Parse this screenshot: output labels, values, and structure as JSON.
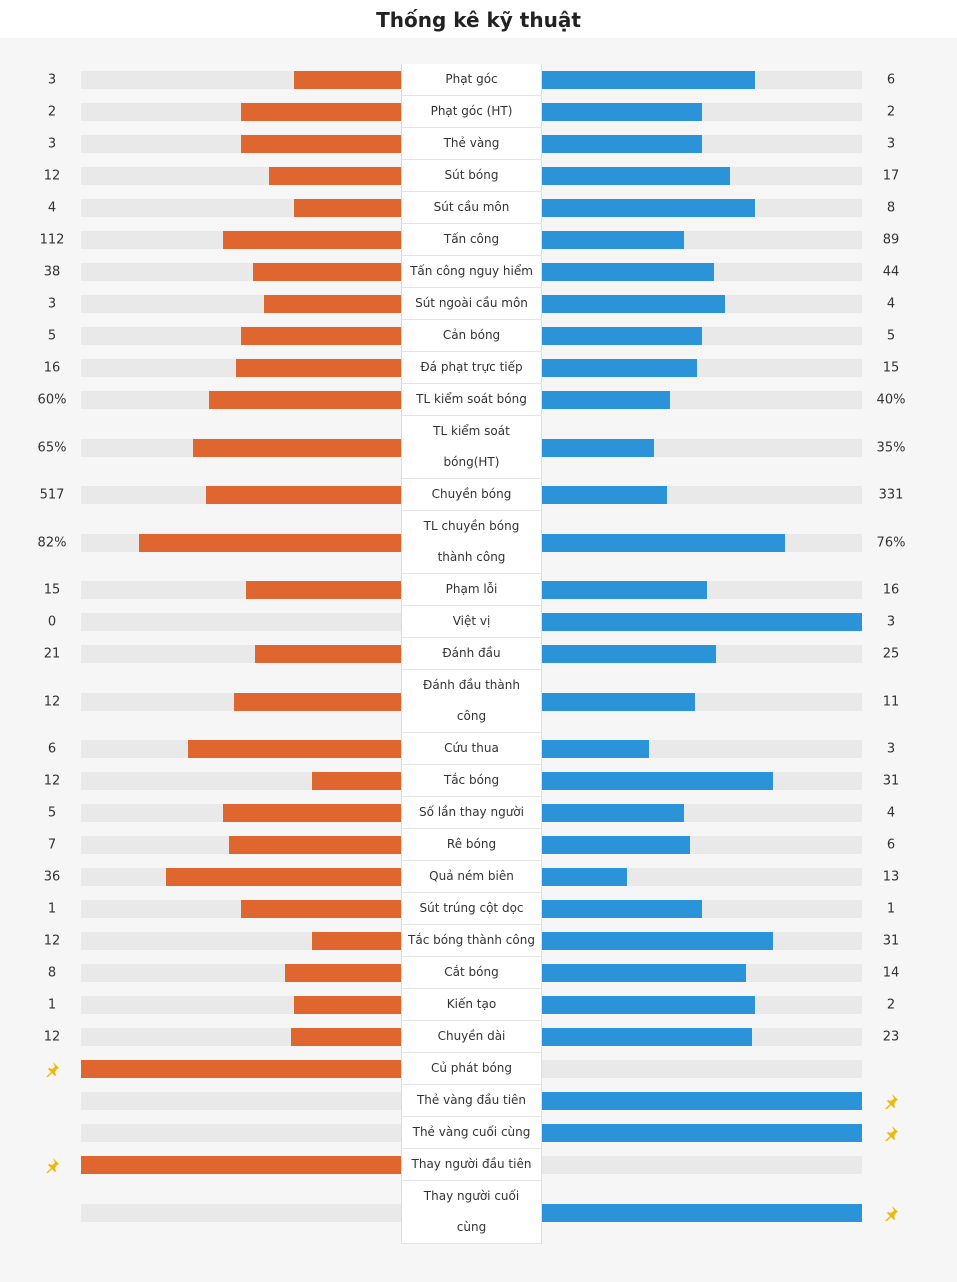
{
  "title": "Thống kê kỹ thuật",
  "home_color": "#e0662f",
  "away_color": "#2b93d8",
  "rows": [
    {
      "label": "Phạt góc",
      "home": 3,
      "away": 6
    },
    {
      "label": "Phạt góc (HT)",
      "home": 2,
      "away": 2
    },
    {
      "label": "Thẻ vàng",
      "home": 3,
      "away": 3
    },
    {
      "label": "Sút bóng",
      "home": 12,
      "away": 17
    },
    {
      "label": "Sút cầu môn",
      "home": 4,
      "away": 8
    },
    {
      "label": "Tấn công",
      "home": 112,
      "away": 89
    },
    {
      "label": "Tấn công nguy hiểm",
      "home": 38,
      "away": 44
    },
    {
      "label": "Sút ngoài cầu môn",
      "home": 3,
      "away": 4
    },
    {
      "label": "Cản bóng",
      "home": 5,
      "away": 5
    },
    {
      "label": "Đá phạt trực tiếp",
      "home": 16,
      "away": 15
    },
    {
      "label": "TL kiểm soát bóng",
      "home": 60,
      "home_label": "60%",
      "away": 40,
      "away_label": "40%"
    },
    {
      "label": "TL kiểm soát bóng(HT)",
      "home": 65,
      "home_label": "65%",
      "away": 35,
      "away_label": "35%"
    },
    {
      "label": "Chuyền bóng",
      "home": 517,
      "away": 331
    },
    {
      "label": "TL chuyền bóng thành công",
      "home": 82,
      "home_label": "82%",
      "away": 76,
      "away_label": "76%"
    },
    {
      "label": "Phạm lỗi",
      "home": 15,
      "away": 16
    },
    {
      "label": "Việt vị",
      "home": 0,
      "away": 3
    },
    {
      "label": "Đánh đầu",
      "home": 21,
      "away": 25
    },
    {
      "label": "Đánh đầu thành công",
      "home": 12,
      "away": 11
    },
    {
      "label": "Cứu thua",
      "home": 6,
      "away": 3
    },
    {
      "label": "Tắc bóng",
      "home": 12,
      "away": 31
    },
    {
      "label": "Số lần thay người",
      "home": 5,
      "away": 4
    },
    {
      "label": "Rê bóng",
      "home": 7,
      "away": 6
    },
    {
      "label": "Quả ném biên",
      "home": 36,
      "away": 13
    },
    {
      "label": "Sút trúng cột dọc",
      "home": 1,
      "away": 1
    },
    {
      "label": "Tắc bóng thành công",
      "home": 12,
      "away": 31
    },
    {
      "label": "Cắt bóng",
      "home": 8,
      "away": 14
    },
    {
      "label": "Kiến tạo",
      "home": 1,
      "away": 2
    },
    {
      "label": "Chuyền dài",
      "home": 12,
      "away": 23
    },
    {
      "label": "Củ phát bóng",
      "first": "home"
    },
    {
      "label": "Thẻ vàng đầu tiên",
      "first": "away"
    },
    {
      "label": "Thẻ vàng cuối cùng",
      "first": "away"
    },
    {
      "label": "Thay người đầu tiên",
      "first": "home"
    },
    {
      "label": "Thay người cuối cùng",
      "first": "away"
    }
  ]
}
